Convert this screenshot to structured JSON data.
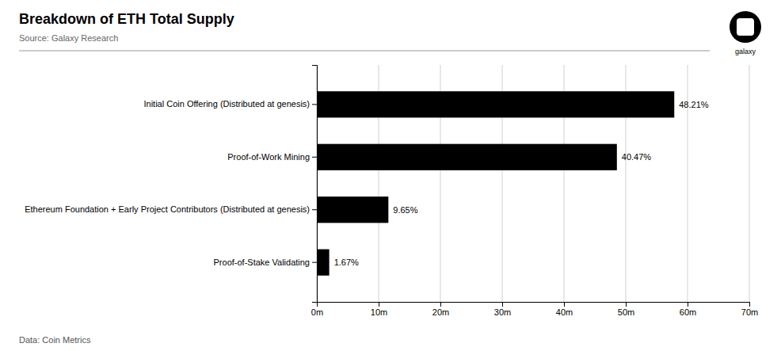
{
  "chart_data": {
    "type": "bar",
    "orientation": "horizontal",
    "title": "Breakdown of ETH Total Supply",
    "subtitle": "Source: Galaxy Research",
    "annotations": [
      "Data: Coin Metrics",
      "galaxy"
    ],
    "categories": [
      "Initial Coin Offering (Distributed at genesis)",
      "Proof-of-Work Mining",
      "Ethereum Foundation + Early Project Contributors (Distributed at genesis)",
      "Proof-of-Stake Validating"
    ],
    "values": [
      57.852,
      48.564,
      11.58,
      2.004
    ],
    "value_labels": [
      "48.21%",
      "40.47%",
      "9.65%",
      "1.67%"
    ],
    "data_labels": true,
    "color": "#000000",
    "xlim": [
      0,
      70
    ],
    "xticks": [
      {
        "value": 0,
        "label": "0m"
      },
      {
        "value": 10,
        "label": "10m"
      },
      {
        "value": 20,
        "label": "20m"
      },
      {
        "value": 30,
        "label": "30m"
      },
      {
        "value": 40,
        "label": "40m"
      },
      {
        "value": 50,
        "label": "50m"
      },
      {
        "value": 60,
        "label": "60m"
      },
      {
        "value": 70,
        "label": "70m"
      }
    ],
    "grid": true
  }
}
